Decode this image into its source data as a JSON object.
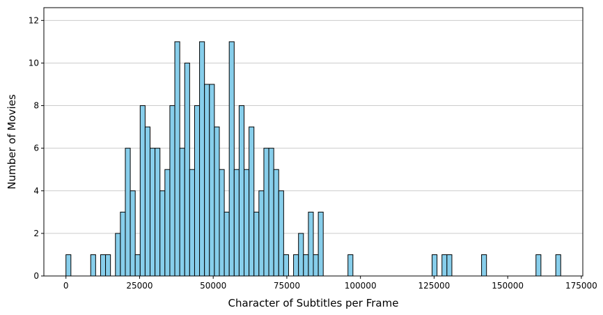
{
  "chart_data": {
    "type": "bar",
    "xlabel": "Character of Subtitles per Frame",
    "ylabel": "Number of Movies",
    "xlim": [
      -7500,
      175500
    ],
    "ylim": [
      0,
      12.6
    ],
    "xticks": [
      0,
      25000,
      50000,
      75000,
      100000,
      125000,
      150000,
      175000
    ],
    "xtick_labels": [
      "0",
      "25000",
      "50000",
      "75000",
      "100000",
      "125000",
      "150000",
      "175000"
    ],
    "yticks": [
      0,
      2,
      4,
      6,
      8,
      10,
      12
    ],
    "ytick_labels": [
      "0",
      "2",
      "4",
      "6",
      "8",
      "10",
      "12"
    ],
    "grid": "y",
    "bin_start": 0,
    "bin_width": 1680,
    "bin_count": 100,
    "counts": [
      1,
      0,
      0,
      0,
      0,
      1,
      0,
      1,
      1,
      0,
      2,
      3,
      6,
      4,
      1,
      8,
      7,
      6,
      6,
      4,
      5,
      8,
      11,
      6,
      10,
      5,
      8,
      11,
      9,
      9,
      7,
      5,
      3,
      11,
      5,
      8,
      5,
      7,
      3,
      4,
      6,
      6,
      5,
      4,
      1,
      0,
      1,
      2,
      1,
      3,
      1,
      3,
      0,
      0,
      0,
      0,
      0,
      1,
      0,
      0,
      0,
      0,
      0,
      0,
      0,
      0,
      0,
      0,
      0,
      0,
      0,
      0,
      0,
      0,
      1,
      0,
      1,
      1,
      0,
      0,
      0,
      0,
      0,
      0,
      1,
      0,
      0,
      0,
      0,
      0,
      0,
      0,
      0,
      0,
      0,
      1,
      0,
      0,
      0,
      1
    ],
    "colors": {
      "bar": "#87ceeb",
      "edge": "#000000",
      "grid": "#cccccc"
    }
  }
}
